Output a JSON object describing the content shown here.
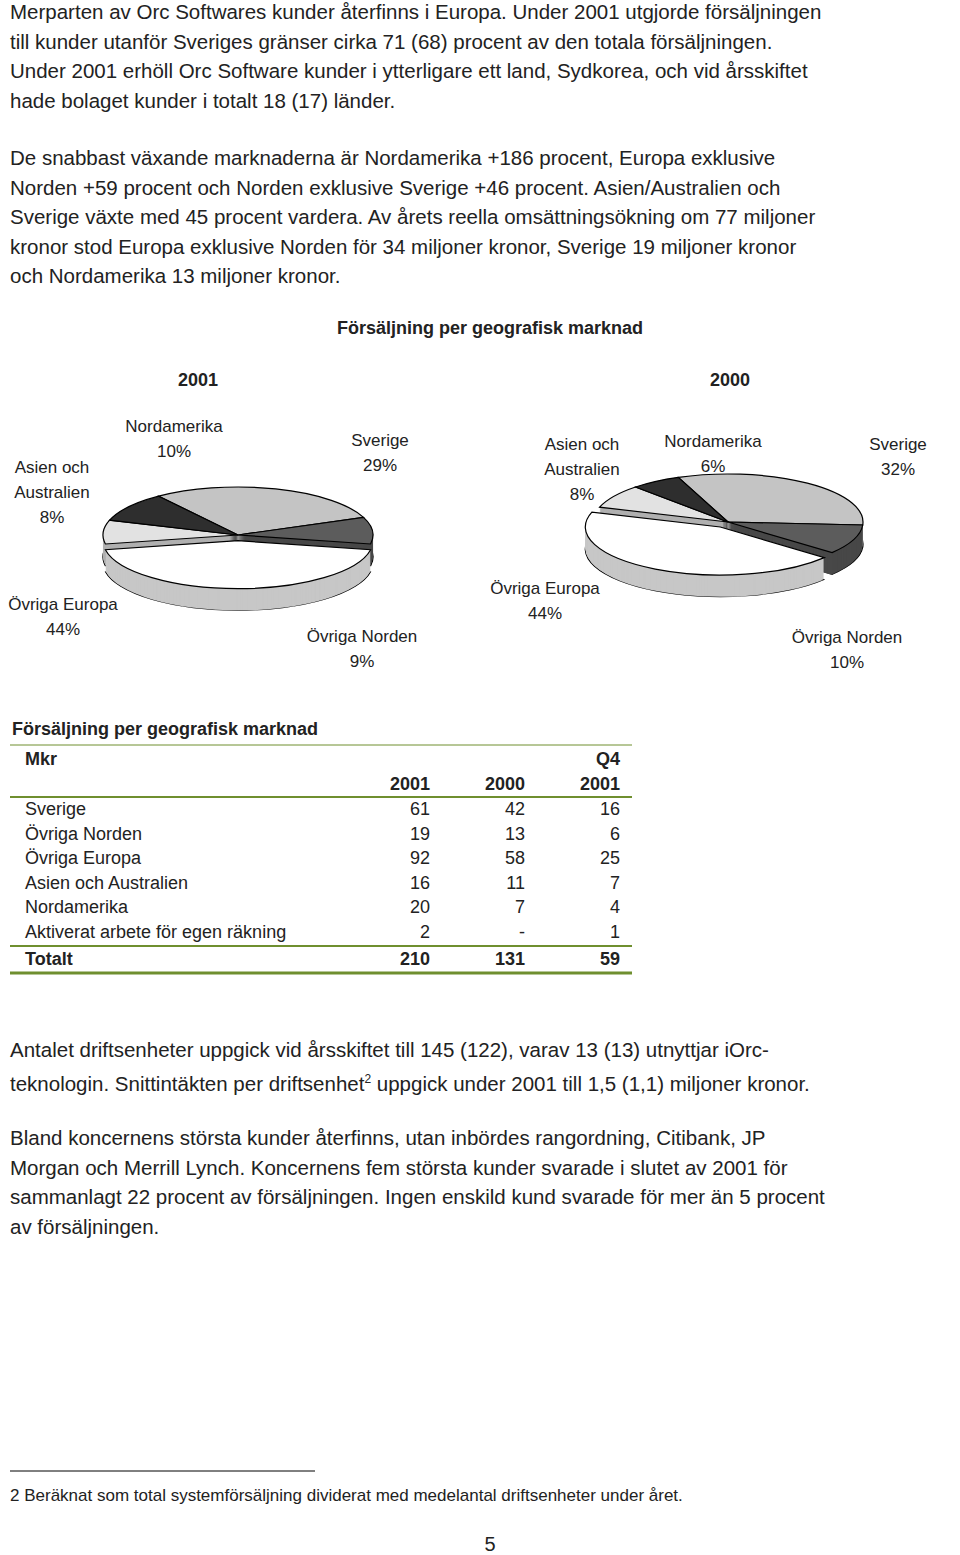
{
  "paragraphs_top": [
    {
      "lines": [
        "Merparten av Orc Softwares kunder återfinns i Europa. Under 2001 utgjorde försäljningen",
        "till kunder utanför Sveriges gränser cirka 71 (68) procent av den totala försäljningen.",
        "Under 2001 erhöll Orc Software kunder i ytterligare ett land, Sydkorea, och vid årsskiftet",
        "hade bolaget kunder i totalt 18 (17) länder."
      ]
    },
    {
      "lines": [
        "De snabbast växande marknaderna är Nordamerika +186 procent, Europa exklusive",
        "Norden +59 procent och Norden exklusive Sverige +46 procent. Asien/Australien och",
        "Sverige växte med 45 procent vardera. Av årets reella omsättningsökning om 77 miljoner",
        "kronor stod Europa exklusive Norden för 34 miljoner kronor, Sverige 19 miljoner kronor",
        "och Nordamerika 13 miljoner kronor."
      ]
    }
  ],
  "chart_data": {
    "type": "pie",
    "title": "Försäljning per geografisk marknad",
    "pies": [
      {
        "name": "2001",
        "categories": [
          "Sverige",
          "Övriga Norden",
          "Övriga Europa",
          "Asien och Australien",
          "Nordamerika"
        ],
        "values": [
          29,
          9,
          44,
          8,
          10
        ],
        "value_labels": [
          "29%",
          "9%",
          "44%",
          "8%",
          "10%"
        ],
        "colors": [
          "#c4c4c4",
          "#5c5c5c",
          "#ffffff",
          "#e2e2e2",
          "#2e2e2e"
        ]
      },
      {
        "name": "2000",
        "categories": [
          "Sverige",
          "Övriga Norden",
          "Övriga Europa",
          "Asien och Australien",
          "Nordamerika"
        ],
        "values": [
          32,
          10,
          44,
          8,
          6
        ],
        "value_labels": [
          "32%",
          "10%",
          "44%",
          "8%",
          "6%"
        ],
        "colors": [
          "#c4c4c4",
          "#5c5c5c",
          "#ffffff",
          "#e2e2e2",
          "#2e2e2e"
        ]
      }
    ]
  },
  "table": {
    "title": "Försäljning per geografisk marknad",
    "header": [
      [
        "Mkr",
        "",
        "",
        "Q4"
      ],
      [
        "",
        "2001",
        "2000",
        "2001"
      ]
    ],
    "rows": [
      [
        "Sverige",
        61,
        42,
        16
      ],
      [
        "Övriga Norden",
        19,
        13,
        6
      ],
      [
        "Övriga Europa",
        92,
        58,
        25
      ],
      [
        "Asien och Australien",
        16,
        11,
        7
      ],
      [
        "Nordamerika",
        20,
        7,
        4
      ],
      [
        "Aktiverat arbete för egen räkning",
        2,
        "-",
        1
      ]
    ],
    "total": [
      "Totalt",
      210,
      131,
      59
    ]
  },
  "paragraphs_bottom": [
    {
      "lines": [
        "Antalet driftsenheter uppgick vid årsskiftet till 145 (122), varav 13 (13) utnyttjar iOrc-",
        {
          "text": "teknologin. Snittintäkten per driftsenhet",
          "sup": "2",
          "after": " uppgick under 2001 till 1,5 (1,1) miljoner kronor."
        }
      ]
    },
    {
      "lines": [
        "Bland koncernens största kunder återfinns, utan inbördes rangordning, Citibank, JP",
        "Morgan och Merrill Lynch. Koncernens fem största kunder svarade i slutet av 2001 för",
        "sammanlagt 22 procent av försäljningen. Ingen enskild kund svarade för mer än 5 procent",
        "av försäljningen."
      ]
    }
  ],
  "footnote": {
    "number": "2",
    "text": "Beräknat som total systemförsäljning dividerat med medelantal driftsenheter under året."
  },
  "page_number": "5"
}
